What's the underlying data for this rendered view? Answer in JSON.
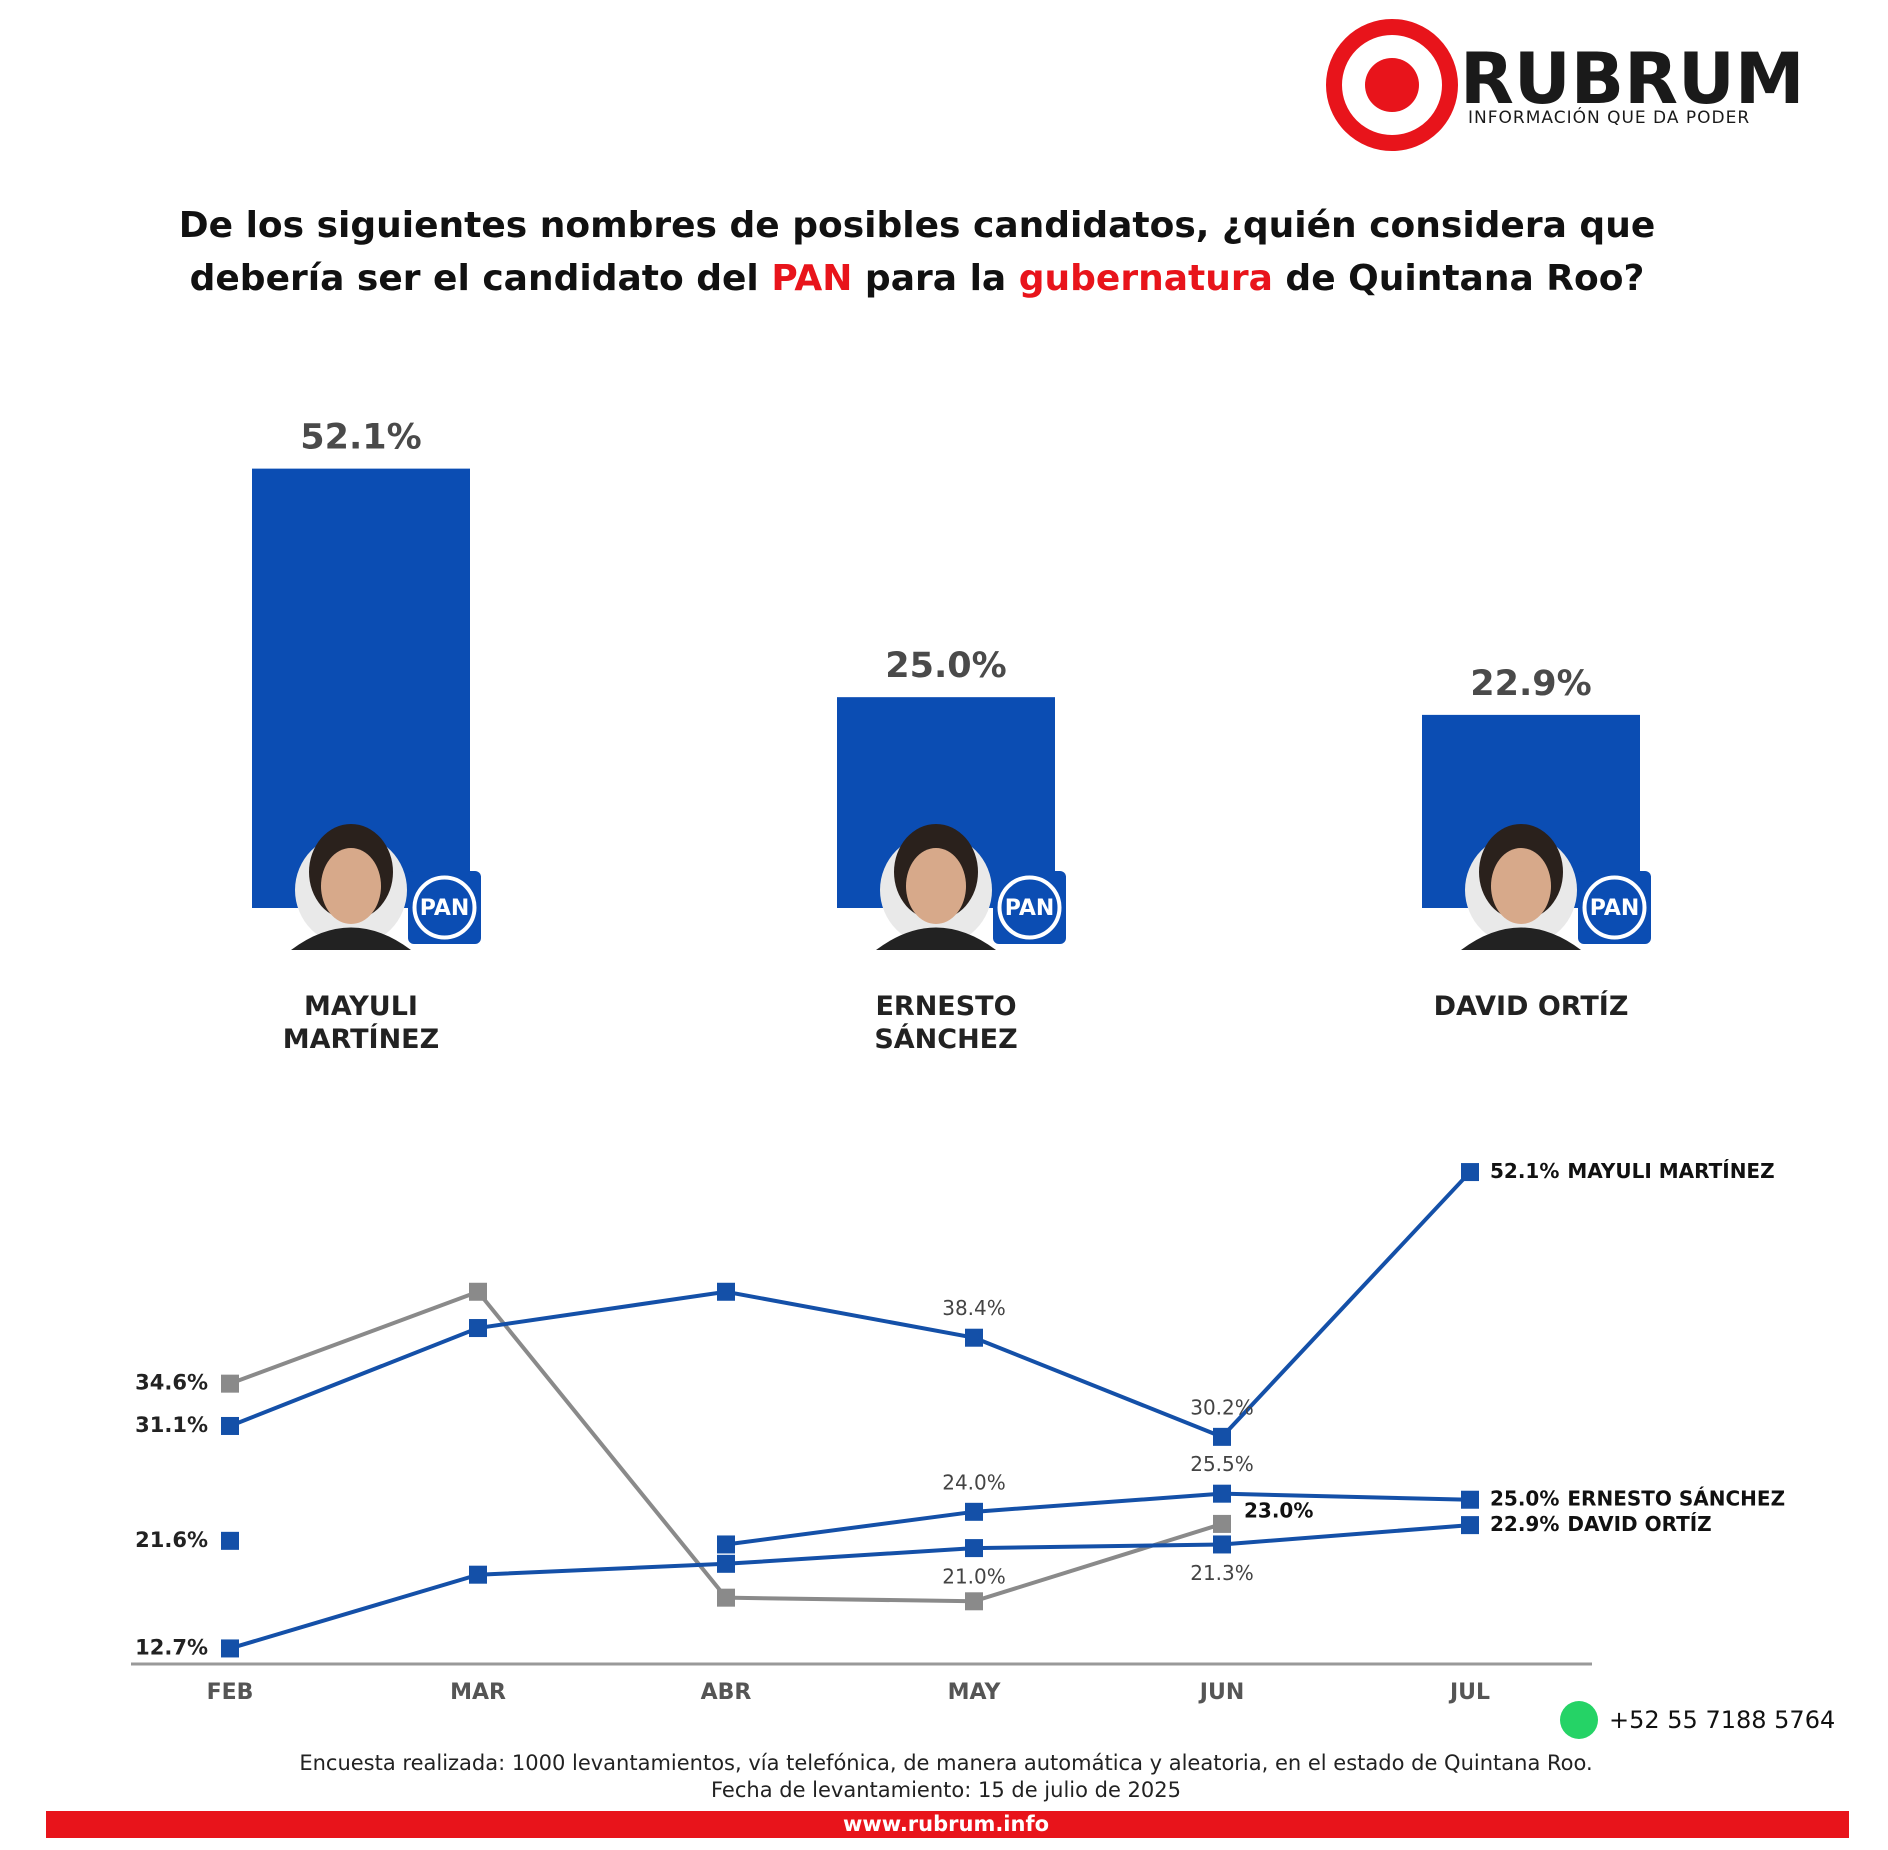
{
  "header": {
    "logo": "RUBRUM",
    "tagline": "INFORMACIÓN QUE DA PODER"
  },
  "title": {
    "lines": [
      [
        {
          "text": "De los siguientes nombres de posibles candidatos, ¿quién considera que",
          "color": "#111111"
        }
      ],
      [
        {
          "text": "debería ser el candidato del ",
          "color": "#111111"
        },
        {
          "text": "PAN",
          "color": "#e8141b"
        },
        {
          "text": " para la ",
          "color": "#111111"
        },
        {
          "text": "gubernatura",
          "color": "#e8141b"
        },
        {
          "text": " de Quintana Roo?",
          "color": "#111111"
        }
      ]
    ]
  },
  "chart_data": [
    {
      "type": "bar",
      "categories": [
        "MAYULI MARTÍNEZ",
        "ERNESTO SÁNCHEZ",
        "DAVID ORTÍZ"
      ],
      "values": [
        52.1,
        25.0,
        22.9
      ],
      "value_labels": [
        "52.1%",
        "25.0%",
        "22.9%"
      ],
      "color": "#0b4db3",
      "ylim": [
        0,
        60
      ],
      "badge": "PAN"
    },
    {
      "type": "line",
      "categories": [
        "FEB",
        "MAR",
        "ABR",
        "MAY",
        "JUN",
        "JUL"
      ],
      "ylim": [
        11,
        55
      ],
      "series": [
        {
          "color": "#8a8a8a",
          "values": [
            34.6,
            42.2,
            16.9,
            16.6,
            23.0,
            null
          ],
          "value_labels": [
            "34.6%",
            null,
            null,
            null,
            "23.0%",
            null
          ]
        },
        {
          "name": "MAYULI MARTÍNEZ",
          "color": "#1450a8",
          "values": [
            31.1,
            39.2,
            42.2,
            38.4,
            30.2,
            52.1
          ],
          "value_labels": [
            "31.1%",
            null,
            null,
            "38.4%",
            "30.2%",
            "52.1%"
          ]
        },
        {
          "name": "ERNESTO SÁNCHEZ",
          "color": "#1450a8",
          "values": [
            21.6,
            null,
            21.3,
            24.0,
            25.5,
            25.0
          ],
          "value_labels": [
            "21.6%",
            null,
            null,
            "24.0%",
            "25.5%",
            "25.0%"
          ]
        },
        {
          "name": "DAVID ORTÍZ",
          "color": "#1450a8",
          "values": [
            12.7,
            18.8,
            19.7,
            21.0,
            21.3,
            22.9
          ],
          "value_labels": [
            "12.7%",
            null,
            null,
            "21.0%",
            "21.3%",
            "22.9%"
          ]
        }
      ]
    }
  ],
  "footer": {
    "phone": "+52 55 7188 5764",
    "notes": [
      "Encuesta realizada: 1000 levantamientos, vía telefónica, de manera automática y aleatoria, en el estado de Quintana Roo.",
      "Fecha de levantamiento: 15 de julio de 2025"
    ],
    "website": "www.rubrum.info"
  }
}
